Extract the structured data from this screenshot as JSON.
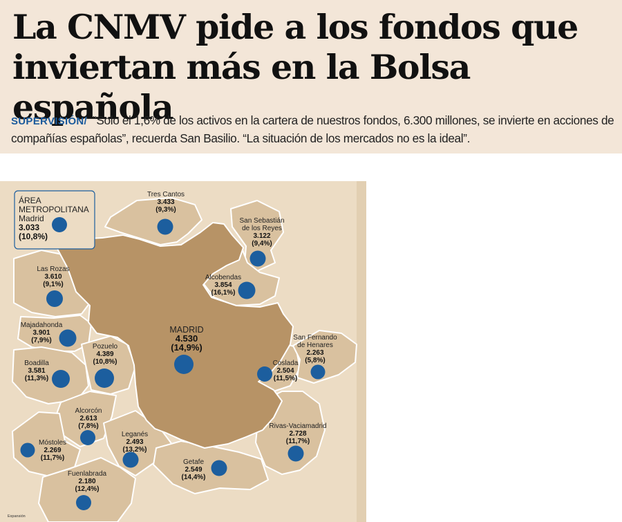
{
  "headline": {
    "line1": "La CNMV pide a los fondos que",
    "line2": "inviertan más en la Bolsa española"
  },
  "lead": {
    "kicker": "SUPERVISIÓN/",
    "text": "“Solo el 1,6% de los activos en la cartera de nuestros fondos, 6.300 millones, se invierte en acciones de compañías españolas”, recuerda San Basilio. “La situación de los mercados no es la ideal”."
  },
  "map": {
    "colors": {
      "paper": "#ecdcc4",
      "municipality": "#d9c19f",
      "madrid": "#b79366",
      "border": "#ffffff",
      "dot": "#1c5e9e"
    },
    "box": {
      "line1": "ÁREA",
      "line2": "METROPOLITANA",
      "line3": "Madrid",
      "value": "3.033",
      "pct": "(10,8%)"
    },
    "credit": "Expansión",
    "municipalities": [
      {
        "id": "tres-cantos",
        "name": "Tres Cantos",
        "value": "3.433",
        "pct": "(9,3%)"
      },
      {
        "id": "san-sebastian",
        "name": "San Sebastián",
        "name2": "de los Reyes",
        "value": "3.122",
        "pct": "(9,4%)"
      },
      {
        "id": "las-rozas",
        "name": "Las Rozas",
        "value": "3.610",
        "pct": "(9,1%)"
      },
      {
        "id": "alcobendas",
        "name": "Alcobendas",
        "value": "3.854",
        "pct": "(16,1%)"
      },
      {
        "id": "majadahonda",
        "name": "Majadahonda",
        "value": "3.901",
        "pct": "(7,9%)"
      },
      {
        "id": "madrid",
        "name": "MADRID",
        "value": "4.530",
        "pct": "(14,9%)"
      },
      {
        "id": "san-fernando",
        "name": "San Fernando",
        "name2": "de Henares",
        "value": "2.263",
        "pct": "(5,8%)"
      },
      {
        "id": "pozuelo",
        "name": "Pozuelo",
        "value": "4.389",
        "pct": "(10,8%)"
      },
      {
        "id": "boadilla",
        "name": "Boadilla",
        "value": "3.581",
        "pct": "(11,3%)"
      },
      {
        "id": "coslada",
        "name": "Coslada",
        "value": "2.504",
        "pct": "(11,5%)"
      },
      {
        "id": "alcorcon",
        "name": "Alcorcón",
        "value": "2.613",
        "pct": "(7,8%)"
      },
      {
        "id": "rivas",
        "name": "Rivas-Vaciamadrid",
        "value": "2.728",
        "pct": "(11,7%)"
      },
      {
        "id": "mostoles",
        "name": "Móstoles",
        "value": "2.269",
        "pct": "(11,7%)"
      },
      {
        "id": "leganes",
        "name": "Leganés",
        "value": "2.493",
        "pct": "(13,2%)"
      },
      {
        "id": "getafe",
        "name": "Getafe",
        "value": "2.549",
        "pct": "(14,4%)"
      },
      {
        "id": "fuenlabrada",
        "name": "Fuenlabrada",
        "value": "2.180",
        "pct": "(12,4%)"
      }
    ]
  }
}
